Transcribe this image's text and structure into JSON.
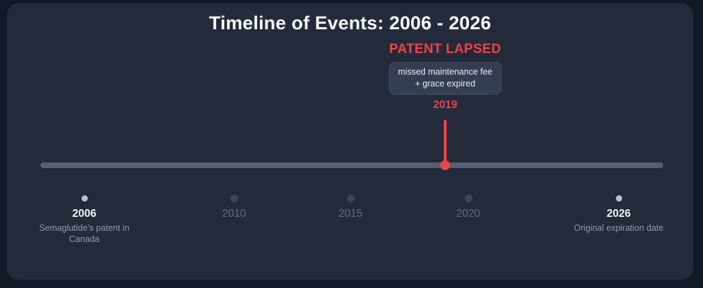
{
  "title": "Timeline of Events: 2006 - 2026",
  "colors": {
    "outer_background": "#131826",
    "card_background": "#232b3b",
    "accent_red": "#ee4348",
    "bar": "#565e6f",
    "active_dot": "#bcc1ca",
    "inactive_dot": "#3d4658",
    "tooltip_background": "#353e51"
  },
  "annotation": {
    "heading": "PATENT LAPSED",
    "tooltip_line1": "missed maintenance fee",
    "tooltip_line2": "+ grace expired",
    "year": "2019"
  },
  "timeline": {
    "start_year": "2006",
    "end_year": "2026",
    "marker_year": "2019",
    "events": [
      {
        "year": "2006",
        "label": "Semaglutide's patent in Canada",
        "highlighted": true
      },
      {
        "year": "2010",
        "label": "",
        "highlighted": false
      },
      {
        "year": "2015",
        "label": "",
        "highlighted": false
      },
      {
        "year": "2020",
        "label": "",
        "highlighted": false
      },
      {
        "year": "2026",
        "label": "Original expiration date",
        "highlighted": true
      }
    ]
  }
}
